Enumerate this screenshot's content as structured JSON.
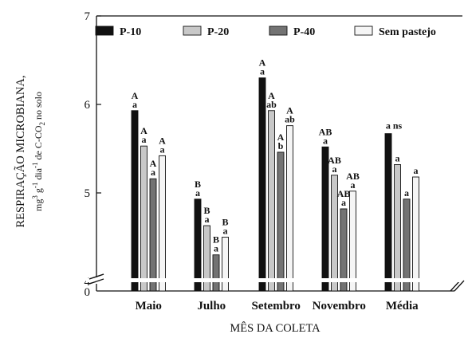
{
  "chart_data": {
    "type": "bar",
    "title": "",
    "xlabel": "MÊS DA COLETA",
    "ylabel": {
      "line1": "RESPIRAÇÃO MICROBIANA,",
      "line2_parts": [
        "mg",
        "3",
        " g",
        "-1",
        " dia",
        "-1",
        " de C-CO",
        "2",
        " no solo"
      ]
    },
    "ylim": [
      4,
      7
    ],
    "y_axis_break": true,
    "yticks": [
      "0",
      "4",
      "5",
      "6",
      "7"
    ],
    "categories": [
      "Maio",
      "Julho",
      "Setembro",
      "Novembro",
      "Média"
    ],
    "legend_position": "top",
    "series": [
      {
        "name": "P-10",
        "color": "#111111",
        "values": [
          5.93,
          4.93,
          6.3,
          5.52,
          5.67
        ],
        "labels": [
          [
            "A",
            "a"
          ],
          [
            "B",
            "a"
          ],
          [
            "A",
            "a"
          ],
          [
            "AB",
            "a"
          ],
          [
            "a",
            "ns"
          ]
        ]
      },
      {
        "name": "P-20",
        "color": "#c8c8c8",
        "values": [
          5.53,
          4.63,
          5.93,
          5.2,
          5.32
        ],
        "labels": [
          [
            "A",
            "a"
          ],
          [
            "B",
            "a"
          ],
          [
            "A",
            "ab"
          ],
          [
            "AB",
            "a"
          ],
          [
            "a"
          ]
        ]
      },
      {
        "name": "P-40",
        "color": "#737373",
        "values": [
          5.16,
          4.3,
          5.46,
          4.82,
          4.93
        ],
        "labels": [
          [
            "A",
            "a"
          ],
          [
            "B",
            "a"
          ],
          [
            "A",
            "b"
          ],
          [
            "AB",
            "a"
          ],
          [
            "a"
          ]
        ]
      },
      {
        "name": "Sem pastejo",
        "color": "#f5f5f5",
        "values": [
          5.42,
          4.5,
          5.76,
          5.02,
          5.18
        ],
        "labels": [
          [
            "A",
            "a"
          ],
          [
            "B",
            "a"
          ],
          [
            "A",
            "ab"
          ],
          [
            "AB",
            "a"
          ],
          [
            "a"
          ]
        ]
      }
    ]
  }
}
